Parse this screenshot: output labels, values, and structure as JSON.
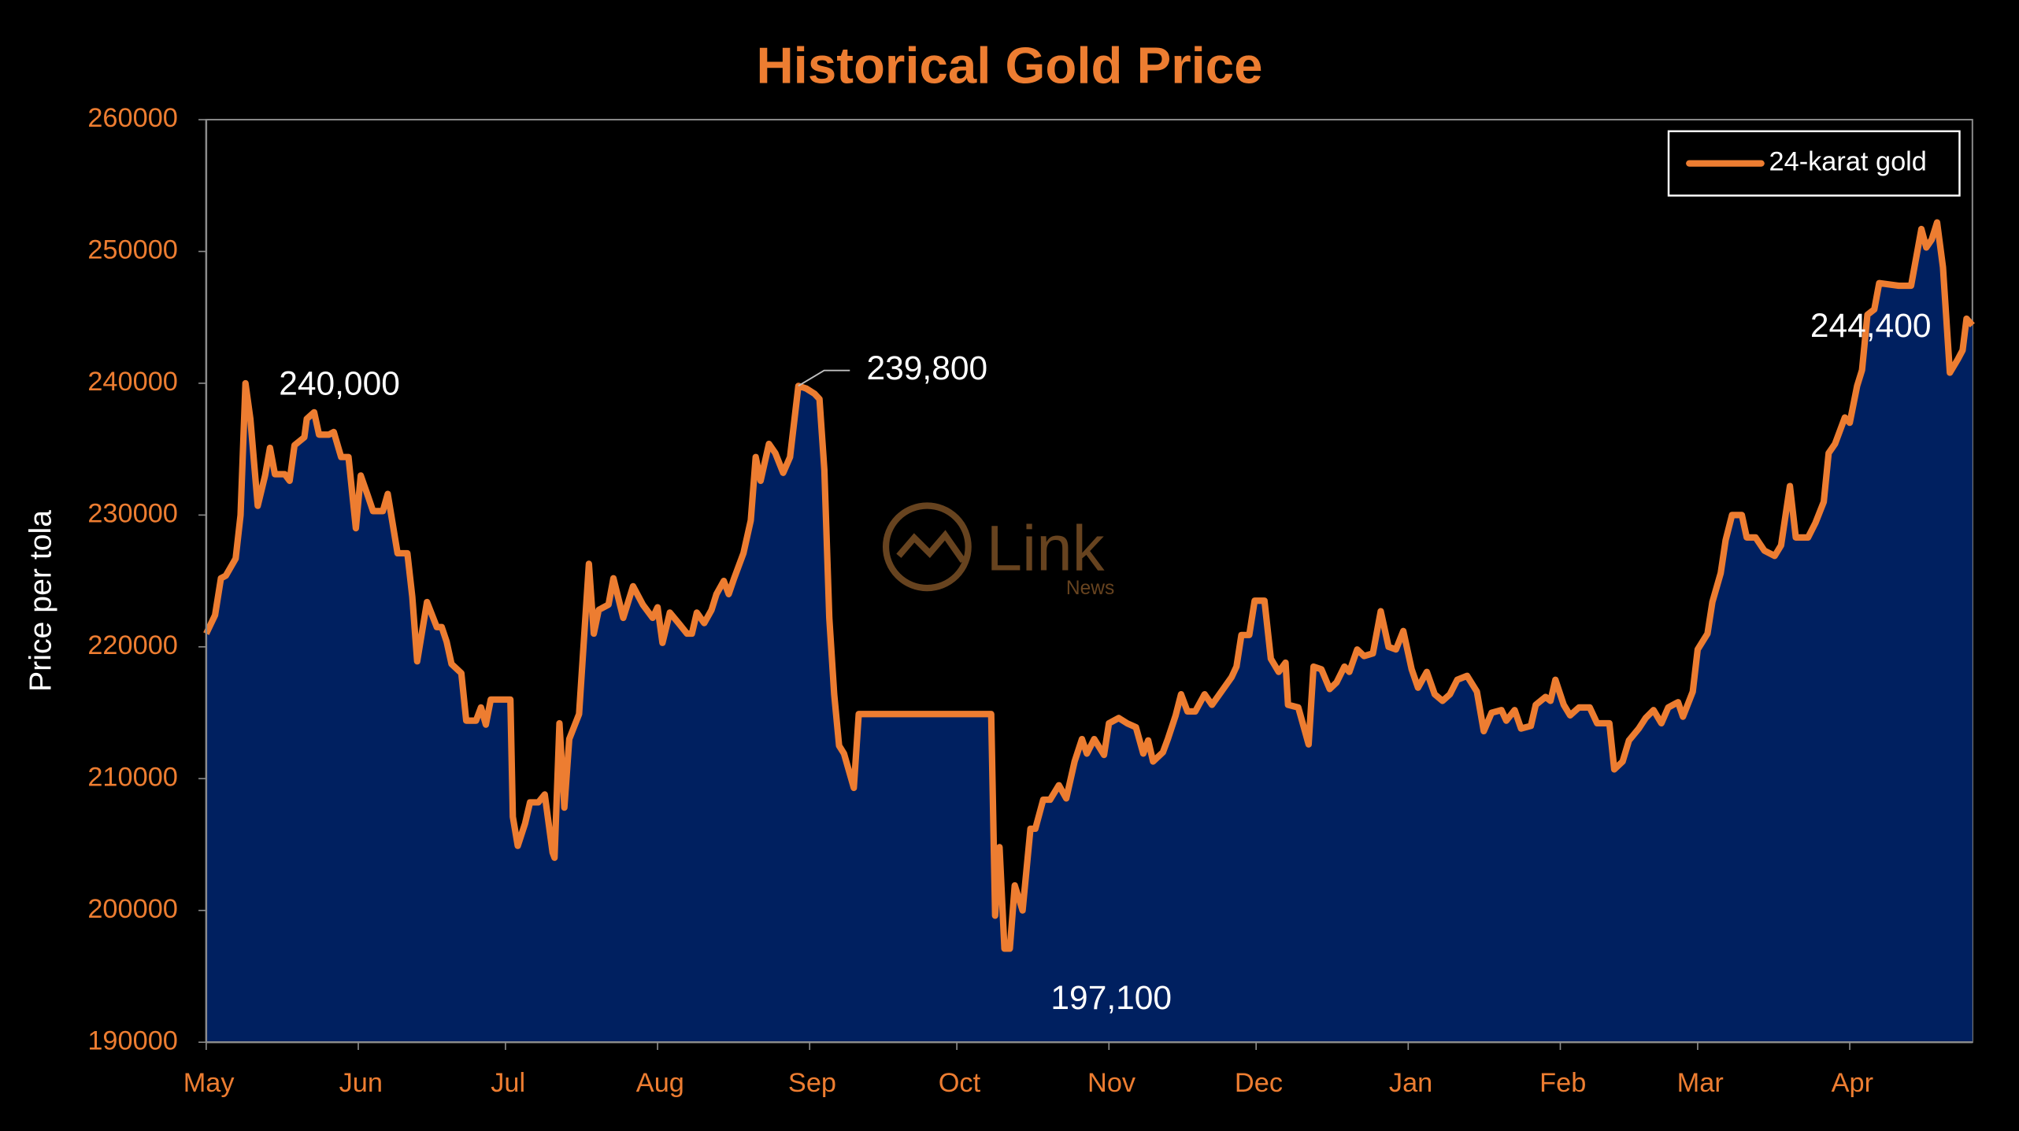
{
  "chart_data": {
    "type": "area",
    "title": "Historical Gold Price",
    "y_label": "Price per tola",
    "legend": "upper right",
    "grid": false,
    "xlim": [
      0,
      360
    ],
    "xticks": [
      {
        "value": 0,
        "label": "May"
      },
      {
        "value": 31,
        "label": "Jun"
      },
      {
        "value": 61,
        "label": "Jul"
      },
      {
        "value": 92,
        "label": "Aug"
      },
      {
        "value": 123,
        "label": "Sep"
      },
      {
        "value": 153,
        "label": "Oct"
      },
      {
        "value": 184,
        "label": "Nov"
      },
      {
        "value": 214,
        "label": "Dec"
      },
      {
        "value": 245,
        "label": "Jan"
      },
      {
        "value": 276,
        "label": "Feb"
      },
      {
        "value": 304,
        "label": "Mar"
      },
      {
        "value": 335,
        "label": "Apr"
      }
    ],
    "ylim": [
      190000,
      260000
    ],
    "yticks": [
      190000,
      200000,
      210000,
      220000,
      230000,
      240000,
      250000,
      260000
    ],
    "x": [
      0,
      1.8,
      3,
      4,
      6,
      7,
      8,
      9,
      10.5,
      12,
      13,
      14,
      16,
      17,
      18,
      20,
      20.5,
      22,
      23,
      25,
      26,
      27.5,
      29,
      30.5,
      31.5,
      33,
      34,
      36,
      37,
      39,
      41,
      42,
      43,
      45,
      47,
      48,
      49,
      50,
      52,
      53,
      55,
      56,
      57,
      58,
      62,
      62.5,
      63.5,
      65,
      66,
      67.7,
      69,
      70.6,
      71,
      72,
      73,
      74,
      76,
      78,
      79,
      80,
      82,
      83,
      85,
      87,
      89,
      91,
      92,
      93,
      94.5,
      96.5,
      98,
      99,
      100,
      101.5,
      103,
      104,
      105.5,
      106.5,
      107.6,
      109.5,
      111,
      112,
      113,
      114.7,
      116,
      117.6,
      119,
      120.7,
      122.3,
      124,
      125,
      126,
      127,
      128,
      129,
      130,
      132,
      133,
      160,
      160.8,
      161.7,
      162.7,
      163.8,
      164.8,
      166.4,
      168,
      169,
      170.6,
      172,
      173.8,
      175.3,
      177,
      178.5,
      179.5,
      181,
      183,
      184,
      186,
      187.7,
      189.5,
      191,
      192,
      193,
      195,
      196,
      197.6,
      198.7,
      200,
      201.6,
      203.5,
      205,
      207.3,
      209,
      210,
      211,
      212.6,
      213.7,
      215.7,
      217,
      218.6,
      220,
      220.5,
      222.6,
      224.7,
      225.7,
      227.3,
      229,
      230.4,
      232,
      233,
      234.6,
      236,
      237.8,
      239.4,
      241,
      242.5,
      244,
      245.7,
      247,
      248.8,
      250.4,
      252,
      253.5,
      255,
      257,
      259,
      260.4,
      262,
      264,
      265,
      266.7,
      268,
      270,
      271,
      273,
      274,
      275,
      276.7,
      278,
      279.8,
      282,
      283.5,
      286,
      287,
      288.7,
      290,
      292,
      293.4,
      295,
      296.6,
      298,
      300,
      301,
      303,
      304,
      306,
      307,
      308.7,
      309.7,
      311,
      313,
      314,
      315.8,
      317.6,
      319.7,
      321,
      322.8,
      324,
      326.5,
      328,
      329.7,
      330.7,
      332,
      334,
      335,
      336.5,
      337.5,
      338.6,
      340,
      341,
      345,
      347.5,
      349.6,
      350.6,
      351.7,
      352.8,
      354,
      355.4,
      357,
      358,
      358.8,
      360
    ],
    "series": [
      {
        "name": "24-karat gold",
        "color": "#ED7D31",
        "fill": "#002060",
        "values": [
          221000,
          222400,
          225200,
          225400,
          226700,
          230000,
          240000,
          237300,
          230700,
          233000,
          235100,
          233100,
          233100,
          232600,
          235300,
          235900,
          237300,
          237800,
          236100,
          236100,
          236300,
          234400,
          234400,
          229000,
          233000,
          231400,
          230300,
          230300,
          231600,
          227100,
          227100,
          223800,
          218900,
          223400,
          221500,
          221500,
          220400,
          218700,
          218000,
          214400,
          214400,
          215400,
          214100,
          216000,
          216000,
          207100,
          204900,
          206600,
          208200,
          208200,
          208800,
          204400,
          204000,
          214200,
          207800,
          213000,
          214900,
          226300,
          221000,
          222800,
          223200,
          225200,
          222200,
          224600,
          223200,
          222200,
          223000,
          220300,
          222600,
          221700,
          221000,
          221000,
          222600,
          221800,
          222800,
          224000,
          225000,
          224000,
          225200,
          227100,
          229600,
          234400,
          232600,
          235400,
          234700,
          233200,
          234400,
          239800,
          239600,
          239200,
          238800,
          233400,
          222200,
          216400,
          212500,
          211900,
          209300,
          214900,
          214900,
          199600,
          204800,
          197100,
          197100,
          201900,
          200000,
          206200,
          206200,
          208400,
          208400,
          209500,
          208500,
          211300,
          213000,
          211900,
          213000,
          211800,
          214200,
          214600,
          214200,
          213900,
          211900,
          212900,
          211300,
          212000,
          213000,
          214800,
          216400,
          215100,
          215100,
          216400,
          215600,
          216800,
          217700,
          218500,
          220900,
          220900,
          223500,
          223500,
          219100,
          218100,
          218800,
          215600,
          215400,
          212600,
          218500,
          218300,
          216800,
          217300,
          218500,
          218100,
          219800,
          219300,
          219500,
          222700,
          220000,
          219800,
          221200,
          218300,
          216900,
          218100,
          216400,
          215900,
          216400,
          217500,
          217800,
          216600,
          213600,
          215000,
          215200,
          214400,
          215200,
          213800,
          214000,
          215600,
          216200,
          215900,
          217500,
          215600,
          214800,
          215400,
          215400,
          214200,
          214200,
          210700,
          211300,
          212900,
          213800,
          214600,
          215200,
          214200,
          215400,
          215800,
          214700,
          216600,
          219800,
          221000,
          223400,
          225600,
          228100,
          230000,
          230000,
          228300,
          228300,
          227300,
          226900,
          227700,
          232200,
          228300,
          228300,
          229400,
          231000,
          234700,
          235400,
          237400,
          237000,
          239800,
          241000,
          245200,
          245600,
          247600,
          247400,
          247400,
          251700,
          250300,
          250900,
          252200,
          248800,
          240800,
          241800,
          242500,
          244900,
          244400
        ]
      }
    ],
    "annotations": [
      {
        "text": "240,000",
        "value": 240000,
        "x": 8
      },
      {
        "text": "239,800",
        "value": 239800,
        "x": 120.7
      },
      {
        "text": "197,100",
        "value": 197100,
        "x": 162.7
      },
      {
        "text": "244,400",
        "value": 244400,
        "x": 360
      }
    ],
    "watermark": {
      "text": "Link",
      "subtext": "News"
    }
  }
}
